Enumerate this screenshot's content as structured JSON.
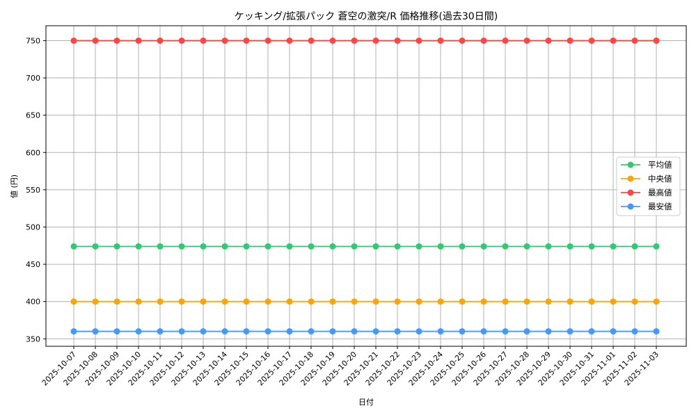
{
  "chart_data": {
    "type": "line",
    "title": "ケッキング/拡張パック 蒼空の激突/R 価格推移(過去30日間)",
    "xlabel": "日付",
    "ylabel": "値 (円)",
    "ylim": [
      340,
      770
    ],
    "yticks": [
      350,
      400,
      450,
      500,
      550,
      600,
      650,
      700,
      750
    ],
    "grid": true,
    "legend_position": "center right",
    "x": [
      "2025-10-07",
      "2025-10-08",
      "2025-10-09",
      "2025-10-10",
      "2025-10-11",
      "2025-10-12",
      "2025-10-13",
      "2025-10-14",
      "2025-10-15",
      "2025-10-16",
      "2025-10-17",
      "2025-10-18",
      "2025-10-19",
      "2025-10-20",
      "2025-10-21",
      "2025-10-22",
      "2025-10-23",
      "2025-10-24",
      "2025-10-25",
      "2025-10-26",
      "2025-10-27",
      "2025-10-28",
      "2025-10-29",
      "2025-10-30",
      "2025-10-31",
      "2025-11-01",
      "2025-11-02",
      "2025-11-03"
    ],
    "series": [
      {
        "name": "平均値",
        "color": "#2ecc71",
        "values": [
          474,
          474,
          474,
          474,
          474,
          474,
          474,
          474,
          474,
          474,
          474,
          474,
          474,
          474,
          474,
          474,
          474,
          474,
          474,
          474,
          474,
          474,
          474,
          474,
          474,
          474,
          474,
          474
        ]
      },
      {
        "name": "中央値",
        "color": "#ffa500",
        "values": [
          400,
          400,
          400,
          400,
          400,
          400,
          400,
          400,
          400,
          400,
          400,
          400,
          400,
          400,
          400,
          400,
          400,
          400,
          400,
          400,
          400,
          400,
          400,
          400,
          400,
          400,
          400,
          400
        ]
      },
      {
        "name": "最高値",
        "color": "#ff4444",
        "values": [
          750,
          750,
          750,
          750,
          750,
          750,
          750,
          750,
          750,
          750,
          750,
          750,
          750,
          750,
          750,
          750,
          750,
          750,
          750,
          750,
          750,
          750,
          750,
          750,
          750,
          750,
          750,
          750
        ]
      },
      {
        "name": "最安値",
        "color": "#4499ff",
        "values": [
          360,
          360,
          360,
          360,
          360,
          360,
          360,
          360,
          360,
          360,
          360,
          360,
          360,
          360,
          360,
          360,
          360,
          360,
          360,
          360,
          360,
          360,
          360,
          360,
          360,
          360,
          360,
          360
        ]
      }
    ]
  }
}
